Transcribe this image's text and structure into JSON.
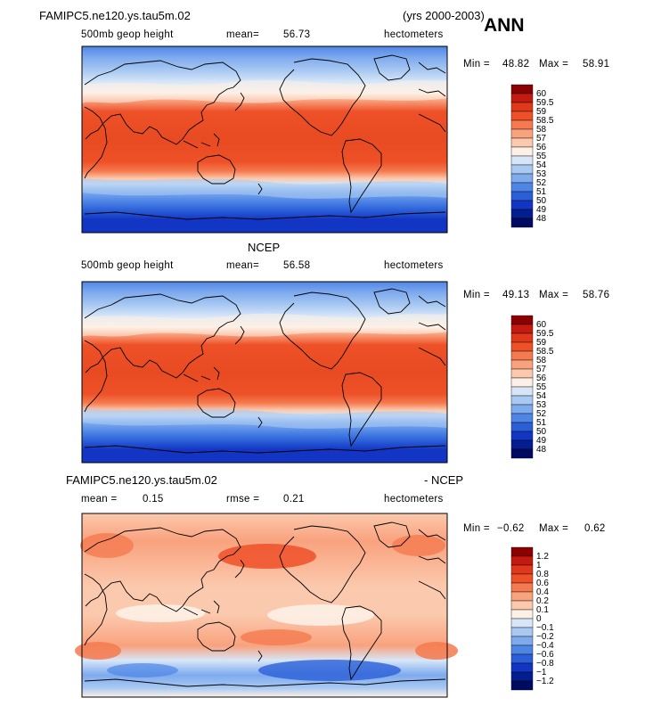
{
  "header": {
    "case_name": "FAMIPC5.ne120.ys.tau5m.02",
    "years": "(yrs 2000-2003)",
    "season": "ANN"
  },
  "panels": [
    {
      "title": "",
      "variable": "500mb geop height",
      "stat1_label": "mean=",
      "stat1_value": "56.73",
      "stat2_label": "",
      "stat2_value": "",
      "units": "hectometers",
      "min_label": "Min =",
      "min_value": "48.82",
      "max_label": "Max =",
      "max_value": "58.91",
      "colorbar_labels": [
        "60",
        "59.5",
        "59",
        "58.5",
        "58",
        "57",
        "56",
        "55",
        "54",
        "53",
        "52",
        "51",
        "50",
        "49",
        "48"
      ]
    },
    {
      "title": "NCEP",
      "variable": "500mb geop height",
      "stat1_label": "mean=",
      "stat1_value": "56.58",
      "stat2_label": "",
      "stat2_value": "",
      "units": "hectometers",
      "min_label": "Min =",
      "min_value": "49.13",
      "max_label": "Max =",
      "max_value": "58.76",
      "colorbar_labels": [
        "60",
        "59.5",
        "59",
        "58.5",
        "58",
        "57",
        "56",
        "55",
        "54",
        "53",
        "52",
        "51",
        "50",
        "49",
        "48"
      ]
    },
    {
      "title": "FAMIPC5.ne120.ys.tau5m.02",
      "title_right": "- NCEP",
      "variable": "",
      "stat1_label": "mean =",
      "stat1_value": "0.15",
      "stat2_label": "rmse =",
      "stat2_value": "0.21",
      "units": "hectometers",
      "min_label": "Min =",
      "min_value": "−0.62",
      "max_label": "Max =",
      "max_value": "0.62",
      "colorbar_labels": [
        "1.2",
        "1",
        "0.8",
        "0.6",
        "0.4",
        "0.2",
        "0.1",
        "0",
        "−0.1",
        "−0.2",
        "−0.4",
        "−0.6",
        "−0.8",
        "−1",
        "−1.2"
      ]
    }
  ],
  "colors": {
    "scale": [
      "#8b0000",
      "#c41a10",
      "#e0381a",
      "#ee5028",
      "#f57a4f",
      "#f9a27e",
      "#fbc9ad",
      "#fdf0e6",
      "#d6e6f8",
      "#a9c9f2",
      "#7eaaee",
      "#4f86e6",
      "#2b5fd8",
      "#1235c4",
      "#041e8f",
      "#000a60"
    ]
  }
}
